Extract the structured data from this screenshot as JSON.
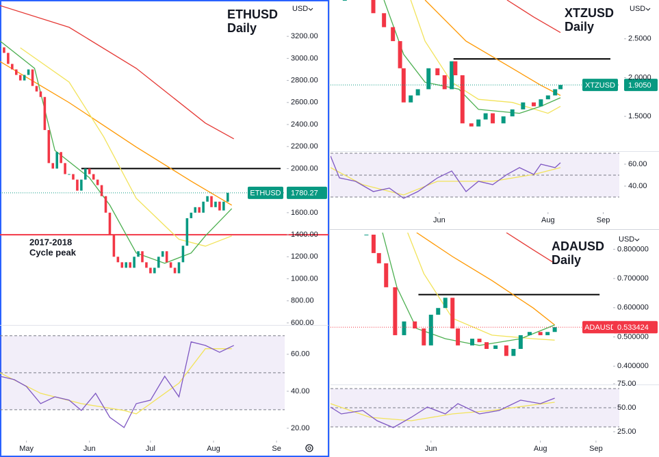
{
  "chart_data": [
    {
      "type": "candlestick",
      "title": "ETHUSD",
      "subtitle": "Daily",
      "currency": "USD",
      "annotation": [
        "2017-2018",
        "Cycle peak"
      ],
      "last_price_symbol": "ETHUSD",
      "last_price_label": "1780.27",
      "last_price_color": "#089981",
      "up_color": "#089981",
      "down_color": "#f23645",
      "xlim": [
        0,
        140
      ],
      "ylim": [
        612,
        3530
      ],
      "xticks": [
        {
          "value": 13,
          "label": "May"
        },
        {
          "value": 44,
          "label": "Jun"
        },
        {
          "value": 74,
          "label": "Jul"
        },
        {
          "value": 105,
          "label": "Aug"
        },
        {
          "value": 136,
          "label": "Se"
        }
      ],
      "yticks": [
        {
          "value": 600,
          "label": "600.00"
        },
        {
          "value": 800,
          "label": "800.00"
        },
        {
          "value": 1000,
          "label": "1000.00"
        },
        {
          "value": 1200,
          "label": "1200.00"
        },
        {
          "value": 1400,
          "label": "1400.00"
        },
        {
          "value": 1600,
          "label": "1600.00"
        },
        {
          "value": 1800,
          "label": "1800.00"
        },
        {
          "value": 2000,
          "label": "2000.00"
        },
        {
          "value": 2200,
          "label": "2200.00"
        },
        {
          "value": 2400,
          "label": "2400.00"
        },
        {
          "value": 2600,
          "label": "2600.00"
        },
        {
          "value": 2800,
          "label": "2800.00"
        },
        {
          "value": 3000,
          "label": "3000.00"
        },
        {
          "value": 3200,
          "label": "3200.00"
        }
      ],
      "x": [
        0,
        2,
        4,
        6,
        8,
        10,
        12,
        14,
        16,
        18,
        20,
        22,
        24,
        26,
        28,
        30,
        32,
        34,
        36,
        38,
        40,
        42,
        44,
        46,
        48,
        50,
        52,
        54,
        56,
        58,
        60,
        62,
        64,
        66,
        68,
        70,
        72,
        74,
        76,
        78,
        80,
        82,
        84,
        86,
        88,
        90,
        92,
        94,
        96,
        98,
        100,
        102,
        104,
        106,
        108,
        110,
        112
      ],
      "values": [
        3100,
        3050,
        2950,
        2900,
        2850,
        2800,
        2850,
        2900,
        2750,
        2700,
        2650,
        2350,
        2050,
        2000,
        2150,
        2050,
        1950,
        1950,
        1900,
        1800,
        1900,
        2000,
        1950,
        1900,
        1850,
        1750,
        1600,
        1400,
        1200,
        1150,
        1100,
        1150,
        1100,
        1200,
        1250,
        1150,
        1100,
        1050,
        1100,
        1200,
        1250,
        1150,
        1100,
        1050,
        1150,
        1300,
        1550,
        1600,
        1650,
        1600,
        1700,
        1750,
        1650,
        1700,
        1620,
        1700,
        1780.27
      ],
      "levels": [
        {
          "value": 2000,
          "color": "#000000",
          "xrange": [
            40,
            138
          ]
        },
        {
          "value": 1400,
          "color": "#f23645"
        }
      ],
      "series": [
        {
          "color": "#e53935",
          "x": [
            0,
            34,
            67,
            101,
            115
          ],
          "values": [
            3480,
            3282,
            2910,
            2413,
            2270
          ]
        },
        {
          "color": "#ff9800",
          "x": [
            0,
            34,
            67,
            94,
            114
          ],
          "values": [
            2972,
            2599,
            2196,
            1886,
            1668
          ]
        },
        {
          "color": "#f2e35a",
          "x": [
            10,
            34,
            51,
            67,
            88,
            101,
            114
          ],
          "values": [
            3096,
            2785,
            2289,
            1730,
            1358,
            1296,
            1389
          ]
        },
        {
          "color": "#4caf50",
          "x": [
            0,
            17,
            27,
            44,
            54,
            67,
            81,
            94,
            101,
            114
          ],
          "values": [
            3158,
            2910,
            2165,
            1917,
            1668,
            1234,
            1141,
            1234,
            1389,
            1637
          ]
        }
      ],
      "rsi": {
        "ylim": [
          14.8,
          74
        ],
        "yticks": [
          {
            "value": 20,
            "label": "20.00"
          },
          {
            "value": 40,
            "label": "40.00"
          },
          {
            "value": 60,
            "label": "60.00"
          }
        ],
        "levels": [
          30,
          50,
          70
        ],
        "series": [
          {
            "color": "#7e57c2",
            "x": [
              0,
              7,
              13,
              20,
              27,
              34,
              40,
              47,
              54,
              61,
              67,
              74,
              81,
              88,
              94,
              101,
              108,
              115
            ],
            "values": [
              48.1,
              46.3,
              42.6,
              33.3,
              37,
              35.2,
              29.6,
              38.9,
              25.9,
              20.4,
              33.3,
              35.2,
              48.1,
              37,
              66.7,
              64.8,
              61.1,
              64.8
            ]
          },
          {
            "color": "#f2e35a",
            "x": [
              0,
              20,
              40,
              61,
              67,
              88,
              101,
              114
            ],
            "values": [
              50,
              38.9,
              33.3,
              29.6,
              27.8,
              44.4,
              63,
              63
            ]
          }
        ]
      }
    },
    {
      "type": "candlestick",
      "title": "XTZUSD",
      "subtitle": "Daily",
      "currency": "USD",
      "last_price_symbol": "XTZUSD",
      "last_price_label": "1.9050",
      "last_price_color": "#089981",
      "up_color": "#089981",
      "down_color": "#f23645",
      "xlim": [
        -30,
        132
      ],
      "ylim": [
        1.06,
        3.0
      ],
      "xticks": [
        {
          "value": 31,
          "label": "Jun"
        },
        {
          "value": 92,
          "label": "Aug"
        },
        {
          "value": 123,
          "label": "Sep"
        }
      ],
      "yticks": [
        {
          "value": 1.5,
          "label": "1.5000"
        },
        {
          "value": 2,
          "label": "2.0000"
        },
        {
          "value": 2.5,
          "label": "2.5000"
        }
      ],
      "x": [
        -22,
        -6,
        0,
        5,
        9,
        11,
        15,
        19,
        25,
        30,
        34,
        38,
        40,
        44,
        49,
        53,
        57,
        61,
        67,
        72,
        78,
        84,
        88,
        92,
        96,
        99
      ],
      "values": [
        3.0,
        2.83,
        2.65,
        2.47,
        2.12,
        1.68,
        1.77,
        1.85,
        2.12,
        2.03,
        1.85,
        2.21,
        2.03,
        1.41,
        1.37,
        1.46,
        1.54,
        1.41,
        1.5,
        1.59,
        1.68,
        1.63,
        1.72,
        1.77,
        1.85,
        1.905
      ],
      "levels": [
        {
          "value": 2.24,
          "color": "#000000",
          "xrange": [
            39,
            127
          ]
        }
      ],
      "series": [
        {
          "color": "#e53935",
          "x": [
            69,
            84,
            99
          ],
          "values": [
            3.0,
            2.78,
            2.58
          ]
        },
        {
          "color": "#ff9800",
          "x": [
            23,
            46,
            69,
            88,
            99
          ],
          "values": [
            3.0,
            2.47,
            2.16,
            1.9,
            1.77
          ]
        },
        {
          "color": "#f2e35a",
          "x": [
            15,
            23,
            38,
            53,
            72,
            92,
            99
          ],
          "values": [
            3.0,
            2.47,
            1.94,
            1.72,
            1.68,
            1.54,
            1.63
          ]
        },
        {
          "color": "#4caf50",
          "x": [
            0,
            11,
            23,
            42,
            53,
            76,
            88,
            99
          ],
          "values": [
            3.0,
            2.3,
            1.94,
            1.85,
            1.59,
            1.54,
            1.63,
            1.74
          ]
        }
      ],
      "rsi": {
        "ylim": [
          27.5,
          71.25
        ],
        "yticks": [
          {
            "value": 40,
            "label": "40.00"
          },
          {
            "value": 60,
            "label": "60.00"
          }
        ],
        "levels": [
          30,
          50,
          70
        ],
        "series": [
          {
            "color": "#7e57c2",
            "x": [
              -30,
              -25,
              -16,
              -6,
              3,
              11,
              19,
              30,
              38,
              46,
              53,
              61,
              69,
              76,
              84,
              88,
              96,
              99
            ],
            "values": [
              67.5,
              47.5,
              44.4,
              35,
              38.1,
              28.8,
              35,
              47.5,
              53.8,
              35,
              44.4,
              41.3,
              50.6,
              56.9,
              50.6,
              60,
              56.9,
              61.3
            ]
          },
          {
            "color": "#f2e35a",
            "x": [
              -30,
              -12,
              11,
              30,
              46,
              61,
              84,
              99
            ],
            "values": [
              56.9,
              41.3,
              31.9,
              44.4,
              44.4,
              44.4,
              50.6,
              56.9
            ]
          }
        ]
      }
    },
    {
      "type": "candlestick",
      "title": "ADAUSD",
      "subtitle": "Daily",
      "currency": "USD",
      "last_price_symbol": "ADAUSD",
      "last_price_label": "0.533424",
      "last_price_color": "#f23645",
      "up_color": "#089981",
      "down_color": "#f23645",
      "xlim": [
        -25,
        136
      ],
      "ylim": [
        0.342,
        0.857
      ],
      "xticks": [
        {
          "value": 31,
          "label": "Jun"
        },
        {
          "value": 92,
          "label": "Aug"
        },
        {
          "value": 123,
          "label": "Sep"
        }
      ],
      "yticks": [
        {
          "value": 0.4,
          "label": "0.400000"
        },
        {
          "value": 0.5,
          "label": "0.500000"
        },
        {
          "value": 0.6,
          "label": "0.600000"
        },
        {
          "value": 0.7,
          "label": "0.700000"
        },
        {
          "value": 0.8,
          "label": "0.800000"
        }
      ],
      "x": [
        -5,
        -1,
        2,
        6,
        11,
        16,
        22,
        27,
        31,
        35,
        39,
        43,
        46,
        54,
        58,
        62,
        67,
        73,
        77,
        81,
        86,
        92,
        96,
        100
      ],
      "values": [
        0.85,
        0.787,
        0.752,
        0.67,
        0.506,
        0.553,
        0.529,
        0.471,
        0.576,
        0.599,
        0.634,
        0.529,
        0.471,
        0.494,
        0.482,
        0.459,
        0.471,
        0.435,
        0.459,
        0.506,
        0.517,
        0.506,
        0.517,
        0.533424
      ],
      "levels": [
        {
          "value": 0.645,
          "color": "#000000",
          "xrange": [
            24,
            125
          ]
        }
      ],
      "series": [
        {
          "color": "#e53935",
          "x": [
            73,
            88,
            100
          ],
          "values": [
            0.857,
            0.798,
            0.752
          ]
        },
        {
          "color": "#ff9800",
          "x": [
            23,
            43,
            65,
            88,
            100
          ],
          "values": [
            0.857,
            0.775,
            0.693,
            0.599,
            0.541
          ]
        },
        {
          "color": "#f2e35a",
          "x": [
            18,
            27,
            43,
            65,
            88,
            100
          ],
          "values": [
            0.857,
            0.717,
            0.564,
            0.506,
            0.494,
            0.489
          ]
        },
        {
          "color": "#4caf50",
          "x": [
            4,
            12,
            23,
            39,
            58,
            81,
            100
          ],
          "values": [
            0.857,
            0.67,
            0.529,
            0.494,
            0.471,
            0.494,
            0.541
          ]
        }
      ],
      "rsi": {
        "ylim": [
          18.6,
          72.1
        ],
        "yticks": [
          {
            "value": 25,
            "label": "25.00"
          },
          {
            "value": 50,
            "label": "50.00"
          },
          {
            "value": 75,
            "label": "75.00"
          }
        ],
        "levels": [
          30,
          50,
          70
        ],
        "series": [
          {
            "color": "#7e57c2",
            "x": [
              -25,
              -19,
              -7,
              1,
              10,
              20,
              29,
              39,
              46,
              58,
              69,
              81,
              92,
              100
            ],
            "values": [
              50.7,
              43.6,
              47.1,
              36.4,
              29.3,
              40,
              50.7,
              43.6,
              54.3,
              43.6,
              47.1,
              57.9,
              54.3,
              60
            ]
          },
          {
            "color": "#f2e35a",
            "x": [
              -25,
              -3,
              20,
              43,
              65,
              88,
              100
            ],
            "values": [
              54.3,
              40,
              36.4,
              43.6,
              47.1,
              52.9,
              55.7
            ]
          }
        ]
      }
    }
  ]
}
